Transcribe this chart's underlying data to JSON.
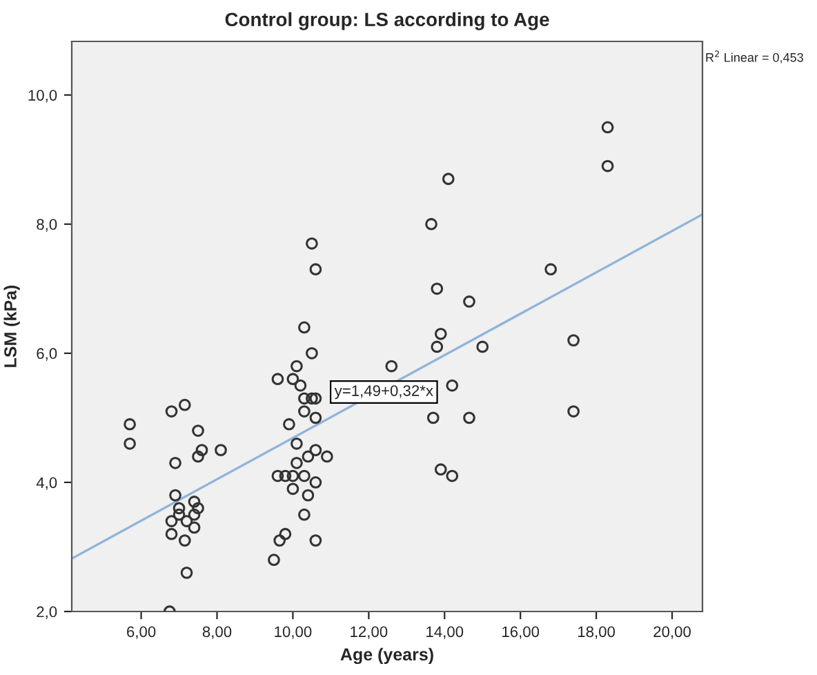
{
  "chart_data": {
    "type": "scatter",
    "title": "Control group: LS according to Age",
    "xlabel": "Age (years)",
    "ylabel": "LSM (kPa)",
    "xlim": [
      4.17,
      20.8
    ],
    "ylim": [
      2.0,
      10.83
    ],
    "xticks": [
      {
        "value": 6,
        "label": "6,00"
      },
      {
        "value": 8,
        "label": "8,00"
      },
      {
        "value": 10,
        "label": "10,00"
      },
      {
        "value": 12,
        "label": "12,00"
      },
      {
        "value": 14,
        "label": "14,00"
      },
      {
        "value": 16,
        "label": "16,00"
      },
      {
        "value": 18,
        "label": "18,00"
      },
      {
        "value": 20,
        "label": "20,00"
      }
    ],
    "yticks": [
      {
        "value": 2,
        "label": "2,0"
      },
      {
        "value": 4,
        "label": "4,0"
      },
      {
        "value": 6,
        "label": "6,0"
      },
      {
        "value": 8,
        "label": "8,0"
      },
      {
        "value": 10,
        "label": "10,0"
      }
    ],
    "grid": false,
    "series": [
      {
        "marker": "circle",
        "color": "#333333",
        "x": [
          5.7,
          5.7,
          6.8,
          7.15,
          6.9,
          7.5,
          7.6,
          7.5,
          8.1,
          6.9,
          7.0,
          7.0,
          6.8,
          6.8,
          7.4,
          7.5,
          7.4,
          7.2,
          7.4,
          7.15,
          7.2,
          6.75,
          9.6,
          10.0,
          10.1,
          10.2,
          10.3,
          10.5,
          10.6,
          10.3,
          10.6,
          9.9,
          10.1,
          10.4,
          10.6,
          10.9,
          10.1,
          9.6,
          9.8,
          10.0,
          10.3,
          10.6,
          10.0,
          10.4,
          10.3,
          9.8,
          9.65,
          10.6,
          9.5,
          10.5,
          10.6,
          10.3,
          10.5,
          12.6,
          14.1,
          13.65,
          13.8,
          14.65,
          13.9,
          13.8,
          15.0,
          14.2,
          13.7,
          14.65,
          13.9,
          14.2,
          16.8,
          17.4,
          17.4,
          18.3,
          18.3
        ],
        "values": [
          4.9,
          4.6,
          5.1,
          5.2,
          4.3,
          4.8,
          4.5,
          4.4,
          4.5,
          3.8,
          3.6,
          3.5,
          3.4,
          3.2,
          3.7,
          3.6,
          3.5,
          3.4,
          3.3,
          3.1,
          2.6,
          2.0,
          5.6,
          5.6,
          5.8,
          5.5,
          5.3,
          5.3,
          5.3,
          5.1,
          5.0,
          4.9,
          4.6,
          4.4,
          4.5,
          4.4,
          4.3,
          4.1,
          4.1,
          4.1,
          4.1,
          4.0,
          3.9,
          3.8,
          3.5,
          3.2,
          3.1,
          3.1,
          2.8,
          7.7,
          7.3,
          6.4,
          6.0,
          5.8,
          8.7,
          8.0,
          7.0,
          6.8,
          6.3,
          6.1,
          6.1,
          5.5,
          5.0,
          5.0,
          4.2,
          4.1,
          7.3,
          6.2,
          5.1,
          9.5,
          8.9
        ]
      },
      {
        "type": "line",
        "color": "#8fb4d9",
        "x": [
          4.17,
          20.8
        ],
        "values": [
          2.82,
          8.15
        ]
      }
    ],
    "annotations": [
      {
        "text": "y=1,49+0,32*x",
        "x": 12.4,
        "y": 5.4
      },
      "R$^{2}$ Linear = 0,453"
    ]
  }
}
